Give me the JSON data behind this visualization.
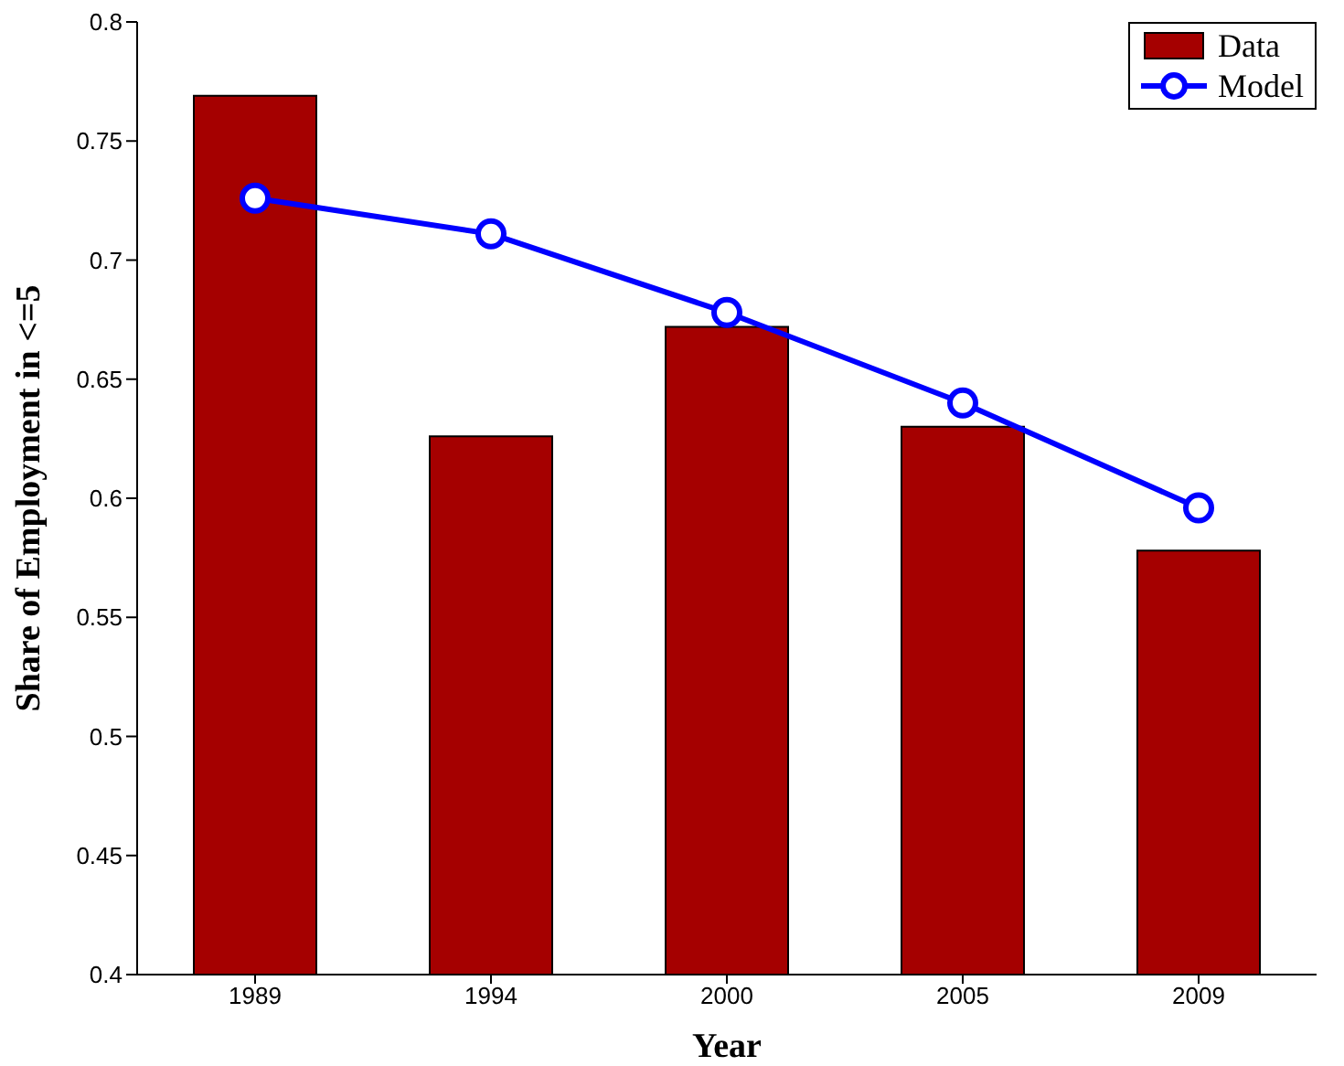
{
  "chart_data": {
    "type": "bar",
    "xlabel": "Year",
    "ylabel": "Share of Employment in  <=5",
    "categories": [
      "1989",
      "1994",
      "2000",
      "2005",
      "2009"
    ],
    "series": [
      {
        "name": "Data",
        "color": "#a50000",
        "values": [
          0.769,
          0.626,
          0.672,
          0.63,
          0.578
        ]
      },
      {
        "name": "Model",
        "type": "line",
        "color": "#0000ff",
        "marker": "circle",
        "values": [
          0.726,
          0.711,
          0.678,
          0.64,
          0.596
        ]
      }
    ],
    "ylim": [
      0.4,
      0.8
    ],
    "yticks": [
      0.4,
      0.45,
      0.5,
      0.55,
      0.6,
      0.65,
      0.7,
      0.75,
      0.8
    ],
    "grid": false,
    "legend": "top right"
  }
}
